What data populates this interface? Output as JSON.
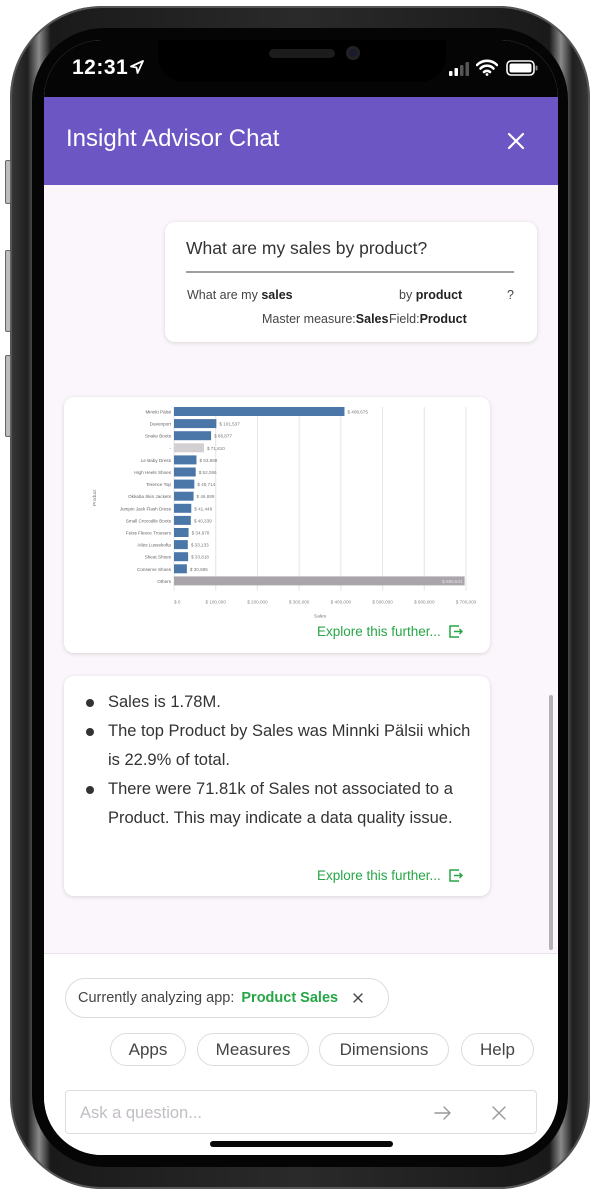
{
  "status_bar": {
    "time": "12:31",
    "icons": [
      "location-arrow-icon",
      "cellular-signal-icon",
      "wifi-icon",
      "battery-icon"
    ]
  },
  "header": {
    "title": "Insight Advisor Chat",
    "close_icon": "close-icon",
    "background": "#6b56c3"
  },
  "question": {
    "text": "What are my sales by product?",
    "parse": {
      "prefix": "What are my",
      "measure_term": "sales",
      "by_label": "by",
      "dimension_term": "product",
      "suffix": "?",
      "measure_type_label": "Master measure:",
      "measure_name": "Sales",
      "field_label": "Field:",
      "field_name": "Product"
    }
  },
  "chart_data": {
    "type": "bar",
    "orientation": "horizontal",
    "title": "",
    "xlabel": "Sales",
    "ylabel": "Product",
    "xlim": [
      0,
      700000
    ],
    "x_ticks": [
      "$ 0",
      "$ 100,000",
      "$ 200,000",
      "$ 300,000",
      "$ 400,000",
      "$ 500,000",
      "$ 600,000",
      "$ 700,000"
    ],
    "grid": true,
    "legend": null,
    "categories": [
      "Minnki Pälsii",
      "Davenport",
      "Snake Boots",
      "-",
      "Le Baby Dress",
      "High Heels Shoes",
      "Terence Top",
      "Okkaba Skin Jackets",
      "Jumpin Jack Flash Dress",
      "Small Crocodile Boots",
      "Feiss Fleece Trousers",
      "Atles Lussekofta",
      "Sheat Shoes",
      "Conserve Shoes",
      "Others"
    ],
    "values": [
      408675,
      101537,
      88877,
      71810,
      53888,
      52066,
      48714,
      46889,
      41448,
      40339,
      34978,
      33133,
      33818,
      30885,
      696641
    ],
    "value_labels": [
      "$ 408,675",
      "$ 101,537",
      "$ 88,877",
      "$ 71,810",
      "$ 53,888",
      "$ 52,066",
      "$ 48,714",
      "$ 46,889",
      "$ 41,448",
      "$ 40,339",
      "$ 34,978",
      "$ 33,133",
      "$ 33,818",
      "$ 30,885",
      "$ 696,641"
    ],
    "bar_colors": {
      "default": "#4a77a8",
      "null_category": "#d2d0d3",
      "others": "#a9a5aa"
    }
  },
  "chart_card": {
    "explore_label": "Explore this further...",
    "explore_icon": "open-external-icon"
  },
  "insights": {
    "bullets": [
      "Sales is 1.78M.",
      "The top Product by Sales was Minnki Pälsii which is 22.9% of total.",
      "There were 71.81k of Sales not associated to a Product. This may indicate a data quality issue."
    ],
    "explore_label": "Explore this further...",
    "explore_icon": "open-external-icon"
  },
  "context": {
    "prefix": "Currently analyzing app:",
    "app_name": "Product Sales",
    "close_icon": "close-icon"
  },
  "pills": [
    "Apps",
    "Measures",
    "Dimensions",
    "Help"
  ],
  "input": {
    "placeholder": "Ask a question...",
    "value": "",
    "send_icon": "arrow-right-icon",
    "clear_icon": "close-icon"
  },
  "colors": {
    "accent_green": "#26a646",
    "header_purple": "#6b56c3",
    "bar_blue": "#4a77a8"
  }
}
